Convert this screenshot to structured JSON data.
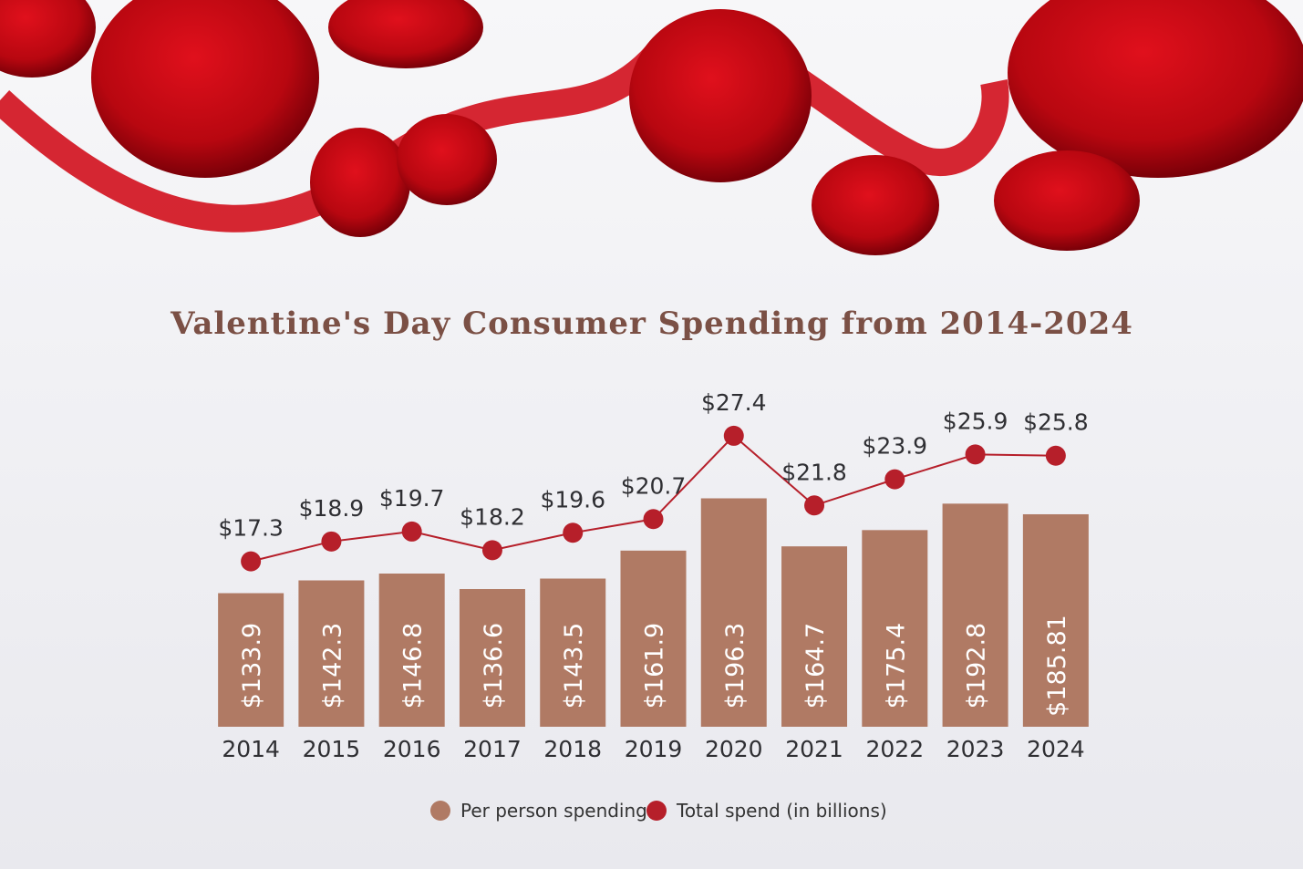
{
  "chart_data": {
    "type": "bar-line",
    "title": "Valentine's Day Consumer Spending from 2014-2024",
    "categories": [
      "2014",
      "2015",
      "2016",
      "2017",
      "2018",
      "2019",
      "2020",
      "2021",
      "2022",
      "2023",
      "2024"
    ],
    "series": [
      {
        "name": "Per person spending",
        "color": "#b07a64",
        "type": "bar",
        "values": [
          133.9,
          142.3,
          146.8,
          136.6,
          143.5,
          161.9,
          196.3,
          164.7,
          175.4,
          192.8,
          185.81
        ],
        "value_labels": [
          "$133.9",
          "$142.3",
          "$146.8",
          "$136.6",
          "$143.5",
          "$161.9",
          "$196.3",
          "$164.7",
          "$175.4",
          "$192.8",
          "$185.81"
        ]
      },
      {
        "name": "Total spend (in billions)",
        "color": "#b61f2a",
        "type": "line",
        "axis": "y2",
        "values": [
          17.3,
          18.9,
          19.7,
          18.2,
          19.6,
          20.7,
          27.4,
          21.8,
          23.9,
          25.9,
          25.8
        ],
        "value_labels": [
          "$17.3",
          "$18.9",
          "$19.7",
          "$18.2",
          "$19.6",
          "$20.7",
          "$27.4",
          "$21.8",
          "$23.9",
          "$25.9",
          "$25.8"
        ]
      }
    ],
    "ylim": [
      46,
      262
    ],
    "y2lim": [
      4,
      30.4
    ],
    "legend": "bottom"
  }
}
